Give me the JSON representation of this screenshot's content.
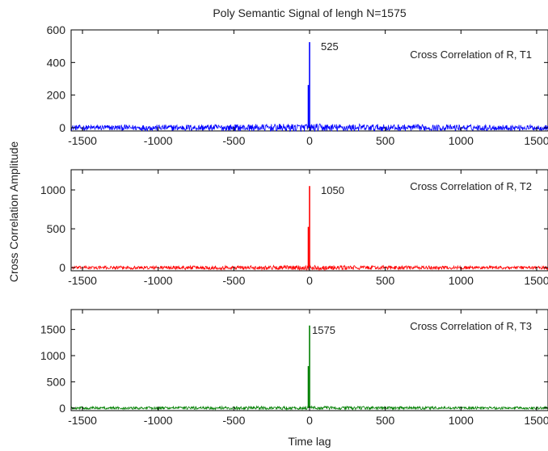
{
  "figure": {
    "title": "Poly Semantic Signal of lengh N=1575",
    "xlabel": "Time lag",
    "ylabel": "Cross Correlation Amplitude"
  },
  "chart_data": [
    {
      "type": "line",
      "title": "Poly Semantic Signal of lengh N=1575",
      "xlabel": "",
      "ylabel": "Cross Correlation Amplitude",
      "legend": "Cross Correlation of R, T1",
      "legend_position": "top-right",
      "color": "#0000ff",
      "xlim": [
        -1575,
        1575
      ],
      "ylim": [
        -20,
        600
      ],
      "xticks": [
        -1500,
        -1000,
        -500,
        0,
        500,
        1000,
        1500
      ],
      "yticks": [
        0,
        200,
        400,
        600
      ],
      "peak": {
        "x": 0,
        "y": 525,
        "label": "525"
      },
      "second_peak": {
        "x": 0,
        "y": 262
      },
      "noise_amplitude": 25,
      "noise_note": "dense noise around zero across full lag range"
    },
    {
      "type": "line",
      "title": "",
      "xlabel": "",
      "ylabel": "Cross Correlation Amplitude",
      "legend": "Cross Correlation of R, T2",
      "legend_position": "top-right",
      "color": "#ff0000",
      "xlim": [
        -1575,
        1575
      ],
      "ylim": [
        -40,
        1260
      ],
      "xticks": [
        -1500,
        -1000,
        -500,
        0,
        500,
        1000,
        1500
      ],
      "yticks": [
        0,
        500,
        1000
      ],
      "peak": {
        "x": 0,
        "y": 1050,
        "label": "1050"
      },
      "second_peak": {
        "x": 0,
        "y": 525
      },
      "noise_amplitude": 30,
      "noise_note": "dense noise around zero across full lag range"
    },
    {
      "type": "line",
      "title": "",
      "xlabel": "Time lag",
      "ylabel": "Cross Correlation Amplitude",
      "legend": "Cross Correlation of R, T3",
      "legend_position": "top-right",
      "color": "#007f00",
      "xlim": [
        -1575,
        1575
      ],
      "ylim": [
        -50,
        1880
      ],
      "xticks": [
        -1500,
        -1000,
        -500,
        0,
        500,
        1000,
        1500
      ],
      "yticks": [
        0,
        500,
        1000,
        1500
      ],
      "peak": {
        "x": 0,
        "y": 1575,
        "label": "1575"
      },
      "second_peak": {
        "x": 0,
        "y": 800
      },
      "noise_amplitude": 35,
      "noise_note": "dense noise around zero across full lag range"
    }
  ]
}
